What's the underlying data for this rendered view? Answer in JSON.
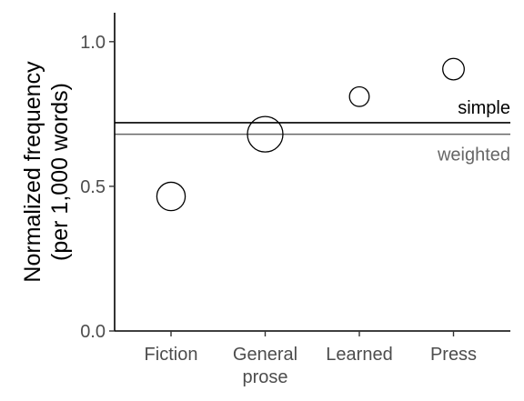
{
  "chart_data": {
    "type": "scatter",
    "title": "",
    "xlabel": "",
    "ylabel_lines": [
      "Normalized frequency",
      "(per 1,000 words)"
    ],
    "categories": [
      {
        "lines": [
          "Fiction"
        ]
      },
      {
        "lines": [
          "General",
          "prose"
        ]
      },
      {
        "lines": [
          "Learned"
        ]
      },
      {
        "lines": [
          "Press"
        ]
      }
    ],
    "values": [
      0.465,
      0.68,
      0.81,
      0.905
    ],
    "point_size_weights": [
      0.35,
      0.55,
      0.17,
      0.2
    ],
    "ylim": [
      0.0,
      1.1
    ],
    "yticks": [
      "0.0",
      "0.5",
      "1.0"
    ],
    "ytick_values": [
      0.0,
      0.5,
      1.0
    ],
    "grid": false,
    "reference_lines": [
      {
        "name": "simple",
        "value": 0.72,
        "color": "#000000"
      },
      {
        "name": "weighted",
        "value": 0.68,
        "color": "#666666"
      }
    ]
  }
}
